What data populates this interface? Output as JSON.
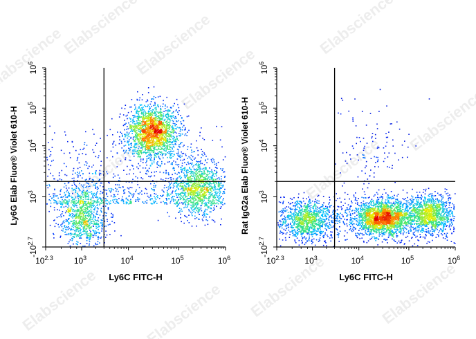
{
  "watermark": "Elabscience",
  "chart_data": [
    {
      "type": "scatter",
      "style": "pseudocolor density dot plot",
      "xlabel": "Ly6C FITC-H",
      "ylabel": "Ly6G Elab Fluor® Violet 610-H",
      "x_scale": "biexponential",
      "y_scale": "biexponential",
      "x_ticks": [
        {
          "base": "10",
          "exp": "2.3",
          "value": 200
        },
        {
          "base": "10",
          "exp": "3",
          "value": 1000
        },
        {
          "base": "10",
          "exp": "4",
          "value": 10000
        },
        {
          "base": "10",
          "exp": "5",
          "value": 100000
        },
        {
          "base": "10",
          "exp": "6",
          "value": 1000000
        }
      ],
      "y_ticks": [
        {
          "base": "-10",
          "exp": "2.7",
          "value": -500
        },
        {
          "base": "10",
          "exp": "3",
          "value": 1000
        },
        {
          "base": "10",
          "exp": "4",
          "value": 10000
        },
        {
          "base": "10",
          "exp": "5",
          "value": 100000
        },
        {
          "base": "10",
          "exp": "6",
          "value": 1000000
        }
      ],
      "quadrant_gate": {
        "x": 3000,
        "y": 2000
      },
      "populations": [
        {
          "center_x": 30000,
          "center_y": 25000,
          "relative_density": 1.0
        },
        {
          "center_x": 1000,
          "center_y": 400,
          "relative_density": 0.35
        },
        {
          "center_x": 250000,
          "center_y": 1500,
          "relative_density": 0.4
        }
      ]
    },
    {
      "type": "scatter",
      "style": "pseudocolor density dot plot",
      "xlabel": "Ly6C FITC-H",
      "ylabel": "Rat IgG2a Elab Fluor® Violet 610-H",
      "x_scale": "biexponential",
      "y_scale": "biexponential",
      "x_ticks": [
        {
          "base": "10",
          "exp": "2.3",
          "value": 200
        },
        {
          "base": "10",
          "exp": "3",
          "value": 1000
        },
        {
          "base": "10",
          "exp": "4",
          "value": 10000
        },
        {
          "base": "10",
          "exp": "5",
          "value": 100000
        },
        {
          "base": "10",
          "exp": "6",
          "value": 1000000
        }
      ],
      "y_ticks": [
        {
          "base": "-10",
          "exp": "2.7",
          "value": -500
        },
        {
          "base": "10",
          "exp": "3",
          "value": 1000
        },
        {
          "base": "10",
          "exp": "4",
          "value": 10000
        },
        {
          "base": "10",
          "exp": "5",
          "value": 100000
        },
        {
          "base": "10",
          "exp": "6",
          "value": 1000000
        }
      ],
      "quadrant_gate": {
        "x": 3000,
        "y": 2000
      },
      "populations": [
        {
          "center_x": 30000,
          "center_y": 400,
          "relative_density": 1.0
        },
        {
          "center_x": 800,
          "center_y": 350,
          "relative_density": 0.3
        },
        {
          "center_x": 250000,
          "center_y": 500,
          "relative_density": 0.45
        }
      ]
    }
  ]
}
